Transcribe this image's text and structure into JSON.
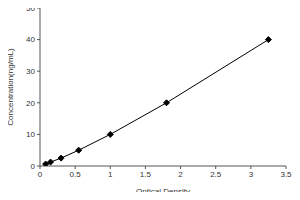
{
  "chart_data": {
    "type": "line",
    "x_label": "Optical Density",
    "y_label": "Concentration(ng/mL)",
    "x": [
      0.08,
      0.15,
      0.3,
      0.55,
      1.0,
      1.8,
      3.25
    ],
    "values": [
      0.625,
      1.25,
      2.5,
      5,
      10,
      20,
      40
    ],
    "color": "#000000",
    "marker": "diamond",
    "xlim": [
      0,
      3.5
    ],
    "xticks": [
      0,
      0.5,
      1,
      1.5,
      2,
      2.5,
      3,
      3.5
    ],
    "ylim": [
      0,
      50
    ],
    "yticks": [
      0,
      10,
      20,
      30,
      40,
      50
    ],
    "grid": false
  }
}
